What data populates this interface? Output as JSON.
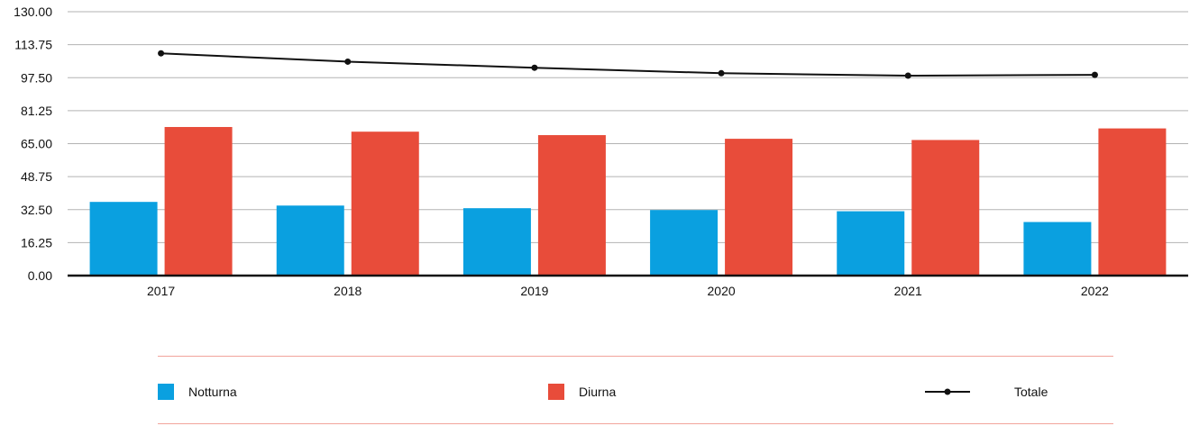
{
  "chart_data": {
    "type": "bar",
    "categories": [
      "2017",
      "2018",
      "2019",
      "2020",
      "2021",
      "2022"
    ],
    "series": [
      {
        "name": "Notturna",
        "type": "bar",
        "color": "#0aa0e0",
        "values": [
          36.3,
          34.5,
          33.2,
          32.3,
          31.7,
          26.4
        ]
      },
      {
        "name": "Diurna",
        "type": "bar",
        "color": "#e84c3a",
        "values": [
          73.2,
          70.9,
          69.2,
          67.4,
          66.8,
          72.5
        ]
      },
      {
        "name": "Totale",
        "type": "line",
        "color": "#111111",
        "values": [
          109.5,
          105.4,
          102.4,
          99.7,
          98.5,
          98.9
        ]
      }
    ],
    "ylim": [
      0,
      130
    ],
    "yticks": [
      "0.00",
      "16.25",
      "32.50",
      "48.75",
      "65.00",
      "81.25",
      "97.50",
      "113.75",
      "130.00"
    ],
    "grid": true,
    "legend_position": "bottom",
    "title": "",
    "xlabel": "",
    "ylabel": ""
  },
  "legend": {
    "items": [
      {
        "label": "Notturna",
        "color": "#0aa0e0",
        "icon": "square-swatch"
      },
      {
        "label": "Diurna",
        "color": "#e84c3a",
        "icon": "square-swatch"
      },
      {
        "label": "Totale",
        "color": "#111111",
        "icon": "line-marker-swatch"
      }
    ]
  },
  "colors": {
    "grid": "#b3b3b3",
    "axis": "#111111",
    "legend_rule": "#f2a49b"
  }
}
